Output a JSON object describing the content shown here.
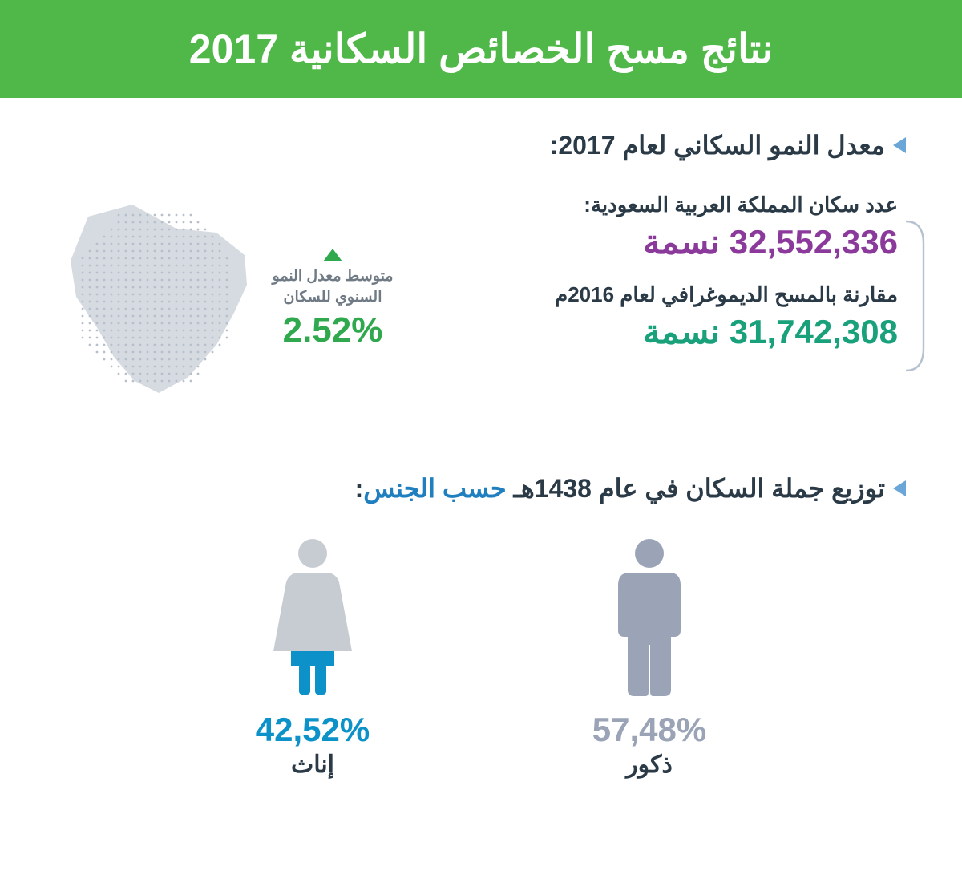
{
  "colors": {
    "header_bg": "#4fb848",
    "header_text": "#ffffff",
    "dark_text": "#2b3a47",
    "purple": "#8b3a9c",
    "green": "#18a17a",
    "growth_green": "#2fa84e",
    "bullet": "#6aa6d8",
    "accent_blue": "#1f7fbf",
    "male_gray": "#9aa4b6",
    "female_gray": "#c7ccd3",
    "female_blue": "#0d91c9",
    "map_fill": "#d6dae1",
    "bracket": "#b6c2cf",
    "growth_label": "#6f7a85"
  },
  "fonts": {
    "header_size": 50,
    "section_heading_size": 32,
    "stat_label_size": 26,
    "stat_value_size": 42,
    "growth_label_size": 19,
    "growth_pct_size": 44,
    "gender_pct_size": 42,
    "gender_label_size": 30
  },
  "header": {
    "title": "نتائج مسح الخصائص السكانية 2017"
  },
  "section1": {
    "heading": "معدل النمو السكاني لعام 2017:",
    "pop_label": "عدد سكان المملكة العربية السعودية:",
    "pop_value": "32,552,336 نسمة",
    "compare_label": "مقارنة بالمسح الديموغرافي لعام 2016م",
    "compare_value": "31,742,308 نسمة",
    "growth_label": "متوسط معدل النمو السنوي للسكان",
    "growth_pct": "2.52%"
  },
  "section2": {
    "heading_part1": "توزيع جملة السكان في عام 1438هـ ",
    "heading_accent": "حسب الجنس",
    "heading_suffix": ":",
    "male_pct": "57,48%",
    "male_label": "ذكور",
    "female_pct": "42,52%",
    "female_label": "إناث"
  }
}
